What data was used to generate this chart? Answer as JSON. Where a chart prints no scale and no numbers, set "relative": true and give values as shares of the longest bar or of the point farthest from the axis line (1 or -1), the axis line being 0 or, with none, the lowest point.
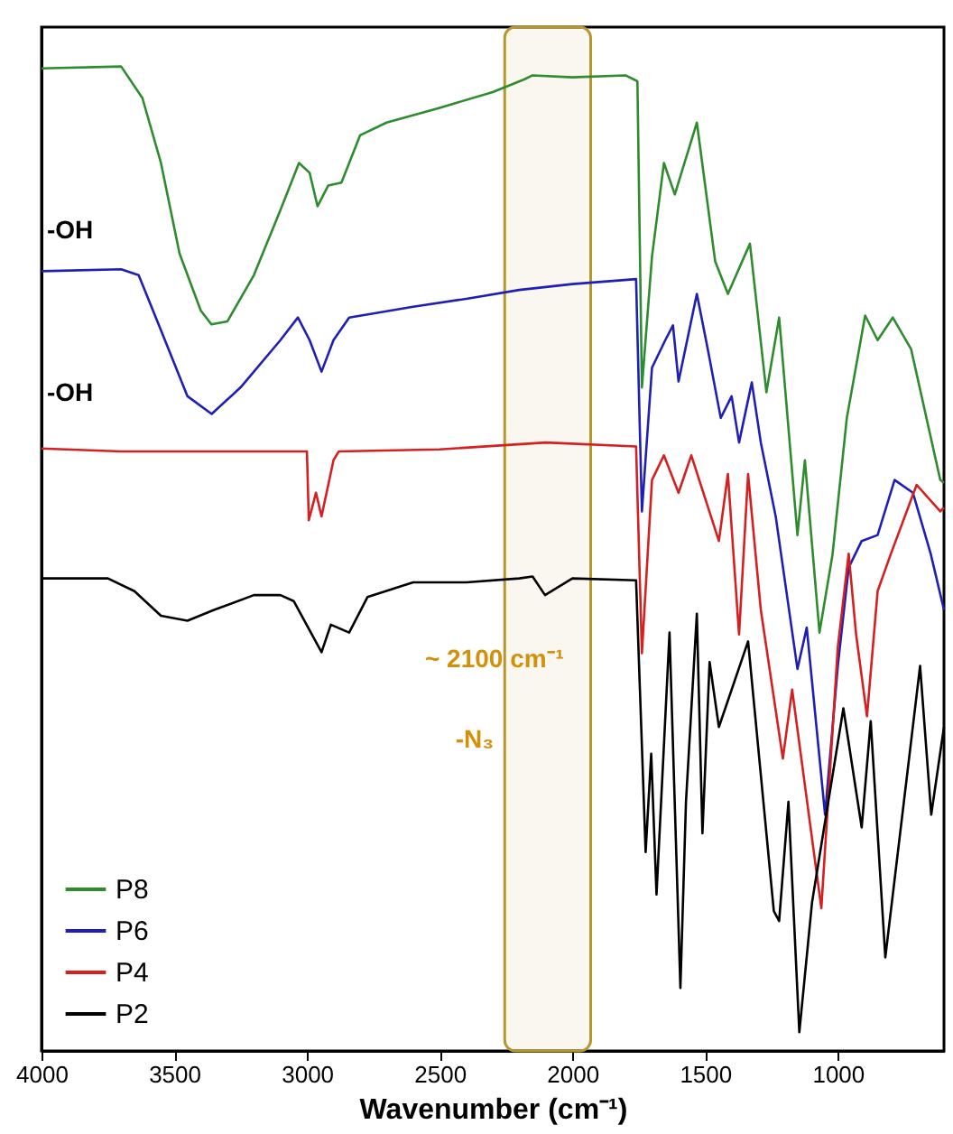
{
  "chart_data": {
    "type": "line",
    "relative": true,
    "xlabel": "Wavenumber (cm⁻¹)",
    "xlim": [
      4000,
      600
    ],
    "xticks": [
      {
        "value": 4000,
        "label": "4000"
      },
      {
        "value": 3500,
        "label": "3500"
      },
      {
        "value": 3000,
        "label": "3000"
      },
      {
        "value": 2500,
        "label": "2500"
      },
      {
        "value": 2000,
        "label": "2000"
      },
      {
        "value": 1500,
        "label": "1500"
      },
      {
        "value": 1000,
        "label": "1000"
      }
    ],
    "grid": false,
    "legend": "bottom left",
    "line_style": "solid",
    "marker": "none",
    "series": [
      {
        "name": "P8",
        "color": "#2e8b2e",
        "x": [
          4000,
          3700,
          3620,
          3550,
          3480,
          3400,
          3360,
          3300,
          3200,
          3100,
          3030,
          2990,
          2960,
          2920,
          2870,
          2800,
          2700,
          2500,
          2300,
          2180,
          2150,
          2000,
          1800,
          1755,
          1738,
          1700,
          1655,
          1614,
          1531,
          1462,
          1414,
          1331,
          1269,
          1221,
          1152,
          1124,
          1069,
          1020,
          966,
          897,
          850,
          793,
          724,
          614,
          600
        ],
        "values": [
          0.998,
          1.0,
          0.968,
          0.902,
          0.81,
          0.752,
          0.738,
          0.741,
          0.788,
          0.854,
          0.902,
          0.892,
          0.858,
          0.879,
          0.882,
          0.93,
          0.943,
          0.958,
          0.974,
          0.987,
          0.991,
          0.989,
          0.991,
          0.985,
          0.674,
          0.807,
          0.902,
          0.87,
          0.943,
          0.802,
          0.769,
          0.82,
          0.669,
          0.745,
          0.524,
          0.6,
          0.425,
          0.504,
          0.643,
          0.747,
          0.722,
          0.745,
          0.713,
          0.58,
          0.577
        ]
      },
      {
        "name": "P6",
        "color": "#1f1fb4",
        "x": [
          4000,
          3700,
          3634,
          3550,
          3450,
          3359,
          3250,
          3100,
          3034,
          2990,
          2945,
          2900,
          2841,
          2600,
          2400,
          2200,
          2000,
          1760,
          1738,
          1700,
          1650,
          1621,
          1600,
          1531,
          1490,
          1441,
          1400,
          1372,
          1324,
          1290,
          1234,
          1152,
          1117,
          1048,
          1000,
          959,
          910,
          850,
          786,
          717,
          650,
          600
        ],
        "values": [
          0.792,
          0.794,
          0.788,
          0.732,
          0.665,
          0.647,
          0.674,
          0.722,
          0.745,
          0.722,
          0.69,
          0.722,
          0.745,
          0.756,
          0.764,
          0.773,
          0.779,
          0.784,
          0.548,
          0.694,
          0.722,
          0.737,
          0.68,
          0.769,
          0.713,
          0.643,
          0.665,
          0.618,
          0.679,
          0.618,
          0.543,
          0.388,
          0.43,
          0.24,
          0.391,
          0.491,
          0.518,
          0.524,
          0.58,
          0.567,
          0.505,
          0.448
        ]
      },
      {
        "name": "P4",
        "color": "#d42020",
        "x": [
          4000,
          3700,
          3000,
          2993,
          2966,
          2945,
          2900,
          2880,
          2500,
          2100,
          1760,
          1738,
          1700,
          1655,
          1600,
          1552,
          1448,
          1414,
          1372,
          1338,
          1290,
          1207,
          1172,
          1062,
          1000,
          959,
          931,
          890,
          850,
          800,
          703,
          614,
          600
        ],
        "values": [
          0.612,
          0.609,
          0.609,
          0.539,
          0.567,
          0.543,
          0.6,
          0.609,
          0.611,
          0.618,
          0.614,
          0.404,
          0.58,
          0.605,
          0.567,
          0.605,
          0.518,
          0.586,
          0.423,
          0.586,
          0.448,
          0.297,
          0.367,
          0.145,
          0.41,
          0.505,
          0.423,
          0.34,
          0.467,
          0.505,
          0.575,
          0.548,
          0.552
        ]
      },
      {
        "name": "P2",
        "color": "#000000",
        "x": [
          4000,
          3750,
          3650,
          3550,
          3450,
          3350,
          3200,
          3100,
          3050,
          2945,
          2910,
          2841,
          2772,
          2600,
          2400,
          2200,
          2150,
          2103,
          2000,
          1760,
          1724,
          1703,
          1683,
          1634,
          1593,
          1572,
          1531,
          1510,
          1483,
          1448,
          1338,
          1241,
          1221,
          1186,
          1145,
          1097,
          979,
          910,
          876,
          821,
          690,
          648,
          600
        ],
        "values": [
          0.48,
          0.48,
          0.467,
          0.442,
          0.437,
          0.448,
          0.463,
          0.463,
          0.457,
          0.405,
          0.433,
          0.425,
          0.461,
          0.476,
          0.476,
          0.48,
          0.482,
          0.463,
          0.48,
          0.478,
          0.202,
          0.302,
          0.159,
          0.425,
          0.064,
          0.253,
          0.444,
          0.221,
          0.395,
          0.329,
          0.416,
          0.142,
          0.132,
          0.253,
          0.019,
          0.151,
          0.348,
          0.227,
          0.335,
          0.095,
          0.391,
          0.24,
          0.329
        ]
      }
    ],
    "bands": [
      {
        "axis": "x",
        "from": 2255,
        "to": 1931,
        "color": "#b8962e"
      }
    ],
    "annotations": [
      "-OH",
      "-OH",
      {
        "text": "~ 2100 cm⁻¹",
        "x": 2103,
        "y": 0.463
      },
      "-N₃"
    ]
  }
}
